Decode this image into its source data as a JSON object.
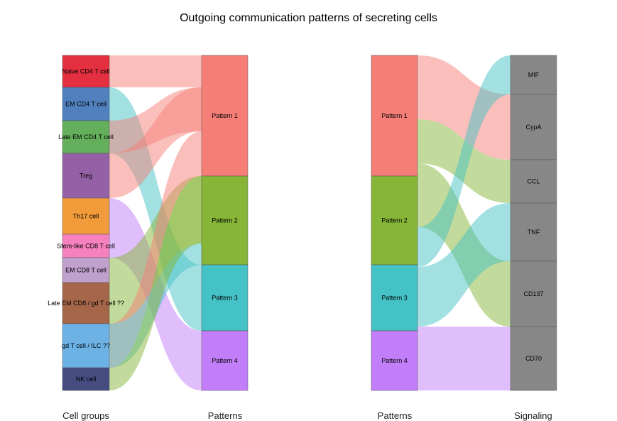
{
  "title": "Outgoing communication patterns of secreting cells",
  "axis_labels": {
    "cell_groups": "Cell groups",
    "patterns_left": "Patterns",
    "patterns_right": "Patterns",
    "signaling": "Signaling"
  },
  "colors": {
    "signaling_node": "#878787",
    "node_border": "#555555"
  },
  "cell_groups": [
    {
      "label": "Naive CD4 T cell",
      "color": "#E32F3F"
    },
    {
      "label": "EM CD4 T cell",
      "color": "#5081BE"
    },
    {
      "label": "Late EM CD4 T cell",
      "color": "#64AF5B"
    },
    {
      "label": "Treg",
      "color": "#9461A7"
    },
    {
      "label": "Th17 cell",
      "color": "#F29B3A"
    },
    {
      "label": "Stem-like CD8 T cell",
      "color": "#F582BE"
    },
    {
      "label": "EM CD8 T cell",
      "color": "#C0A0CC"
    },
    {
      "label": "Late EM CD8 / gd T cell ??",
      "color": "#A5664A"
    },
    {
      "label": "gd T cell / ILC ??",
      "color": "#6DB2E5"
    },
    {
      "label": "NK cell",
      "color": "#454C80"
    }
  ],
  "patterns": [
    {
      "label": "Pattern 1",
      "color": "#F57F77"
    },
    {
      "label": "Pattern 2",
      "color": "#86B537"
    },
    {
      "label": "Pattern 3",
      "color": "#45C2C6"
    },
    {
      "label": "Pattern 4",
      "color": "#C27EF9"
    }
  ],
  "signaling": [
    {
      "label": "MIF"
    },
    {
      "label": "CypA"
    },
    {
      "label": "CCL"
    },
    {
      "label": "TNF"
    },
    {
      "label": "CD137"
    },
    {
      "label": "CD70"
    }
  ],
  "cell_to_pattern": [
    {
      "source": "Naive CD4 T cell",
      "target": "Pattern 1"
    },
    {
      "source": "EM CD4 T cell",
      "target": "Pattern 3"
    },
    {
      "source": "Late EM CD4 T cell",
      "target": "Pattern 1"
    },
    {
      "source": "Late EM CD4 T cell",
      "target": "Pattern 3"
    },
    {
      "source": "Treg",
      "target": "Pattern 1"
    },
    {
      "source": "Th17 cell",
      "target": "Pattern 4"
    },
    {
      "source": "Stem-like CD8 T cell",
      "target": "Pattern 4"
    },
    {
      "source": "EM CD8 T cell",
      "target": "Pattern 2"
    },
    {
      "source": "Late EM CD8 / gd T cell ??",
      "target": "Pattern 2"
    },
    {
      "source": "gd T cell / ILC ??",
      "target": "Pattern 1"
    },
    {
      "source": "gd T cell / ILC ??",
      "target": "Pattern 3"
    },
    {
      "source": "NK cell",
      "target": "Pattern 2"
    }
  ],
  "pattern_to_signaling": [
    {
      "source": "Pattern 1",
      "target": "CypA"
    },
    {
      "source": "Pattern 2",
      "target": "CCL"
    },
    {
      "source": "Pattern 2",
      "target": "CD137"
    },
    {
      "source": "Pattern 3",
      "target": "MIF"
    },
    {
      "source": "Pattern 3",
      "target": "TNF"
    },
    {
      "source": "Pattern 4",
      "target": "CD70"
    }
  ]
}
